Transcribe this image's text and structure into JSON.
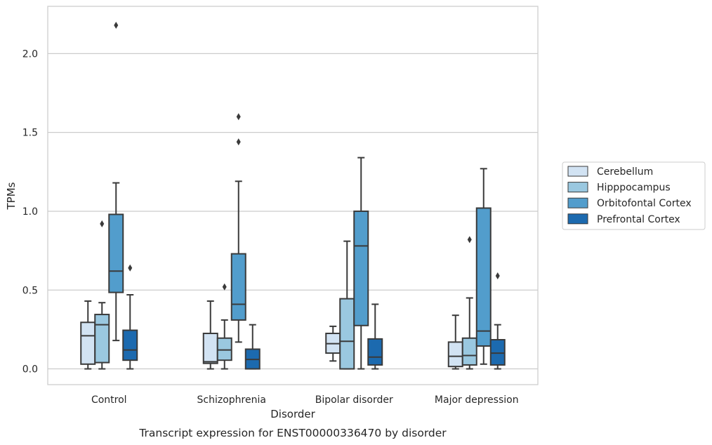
{
  "chart_data": {
    "type": "box",
    "title": "Transcript expression for ENST00000336470 by disorder",
    "xlabel": "Disorder",
    "ylabel": "TPMs",
    "ylim": [
      -0.1,
      2.3
    ],
    "yticks": [
      0.0,
      0.5,
      1.0,
      1.5,
      2.0
    ],
    "ytick_labels": [
      "0.0",
      "0.5",
      "1.0",
      "1.5",
      "2.0"
    ],
    "grid": "horizontal",
    "legend_position": "right",
    "categories": [
      "Control",
      "Schizophrenia",
      "Bipolar disorder",
      "Major depression"
    ],
    "series": [
      {
        "name": "Cerebellum",
        "color": "#d2e3f3",
        "boxes": [
          {
            "whislo": 0.0,
            "q1": 0.03,
            "med": 0.21,
            "q3": 0.295,
            "whishi": 0.43,
            "fliers": []
          },
          {
            "whislo": 0.0,
            "q1": 0.035,
            "med": 0.045,
            "q3": 0.225,
            "whishi": 0.43,
            "fliers": []
          },
          {
            "whislo": 0.05,
            "q1": 0.1,
            "med": 0.16,
            "q3": 0.225,
            "whishi": 0.27,
            "fliers": []
          },
          {
            "whislo": 0.0,
            "q1": 0.015,
            "med": 0.08,
            "q3": 0.17,
            "whishi": 0.34,
            "fliers": []
          }
        ]
      },
      {
        "name": "Hipppocampus",
        "color": "#9ac8e0",
        "boxes": [
          {
            "whislo": 0.0,
            "q1": 0.04,
            "med": 0.28,
            "q3": 0.345,
            "whishi": 0.42,
            "fliers": [
              0.92
            ]
          },
          {
            "whislo": 0.0,
            "q1": 0.055,
            "med": 0.12,
            "q3": 0.195,
            "whishi": 0.31,
            "fliers": [
              0.52
            ]
          },
          {
            "whislo": 0.0,
            "q1": 0.0,
            "med": 0.175,
            "q3": 0.445,
            "whishi": 0.81,
            "fliers": []
          },
          {
            "whislo": 0.0,
            "q1": 0.025,
            "med": 0.085,
            "q3": 0.195,
            "whishi": 0.45,
            "fliers": [
              0.82
            ]
          }
        ]
      },
      {
        "name": "Orbitofontal Cortex",
        "color": "#529dcc",
        "boxes": [
          {
            "whislo": 0.18,
            "q1": 0.485,
            "med": 0.62,
            "q3": 0.98,
            "whishi": 1.18,
            "fliers": [
              2.18
            ]
          },
          {
            "whislo": 0.17,
            "q1": 0.31,
            "med": 0.41,
            "q3": 0.73,
            "whishi": 1.19,
            "fliers": [
              1.44,
              1.6
            ]
          },
          {
            "whislo": 0.0,
            "q1": 0.275,
            "med": 0.78,
            "q3": 1.0,
            "whishi": 1.34,
            "fliers": []
          },
          {
            "whislo": 0.03,
            "q1": 0.145,
            "med": 0.24,
            "q3": 1.02,
            "whishi": 1.27,
            "fliers": []
          }
        ]
      },
      {
        "name": "Prefrontal Cortex",
        "color": "#1c6aaf",
        "boxes": [
          {
            "whislo": 0.0,
            "q1": 0.055,
            "med": 0.12,
            "q3": 0.245,
            "whishi": 0.47,
            "fliers": [
              0.64
            ]
          },
          {
            "whislo": 0.0,
            "q1": 0.0,
            "med": 0.06,
            "q3": 0.125,
            "whishi": 0.28,
            "fliers": []
          },
          {
            "whislo": 0.0,
            "q1": 0.025,
            "med": 0.075,
            "q3": 0.19,
            "whishi": 0.41,
            "fliers": []
          },
          {
            "whislo": 0.0,
            "q1": 0.025,
            "med": 0.1,
            "q3": 0.185,
            "whishi": 0.28,
            "fliers": [
              0.59
            ]
          }
        ]
      }
    ]
  }
}
